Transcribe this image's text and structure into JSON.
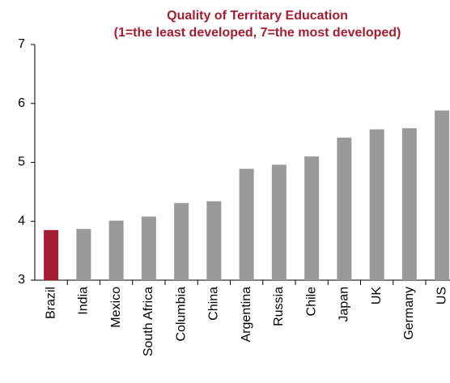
{
  "chart_data": {
    "type": "bar",
    "title": "Quality of Territary Education",
    "subtitle": "(1=the least developed, 7=the most developed)",
    "categories": [
      "Brazil",
      "India",
      "Mexico",
      "South Africa",
      "Columbia",
      "China",
      "Argentina",
      "Russia",
      "Chile",
      "Japan",
      "UK",
      "Germany",
      "US"
    ],
    "values": [
      3.85,
      3.87,
      4.01,
      4.08,
      4.31,
      4.34,
      4.89,
      4.96,
      5.1,
      5.42,
      5.56,
      5.58,
      5.88
    ],
    "colors": [
      "#a51c30",
      "#999999",
      "#999999",
      "#999999",
      "#999999",
      "#999999",
      "#999999",
      "#999999",
      "#999999",
      "#999999",
      "#999999",
      "#999999",
      "#999999"
    ],
    "title_color": "#a51c30",
    "ylim": [
      3,
      7
    ],
    "yticks": [
      3,
      4,
      5,
      6,
      7
    ],
    "grid": false
  }
}
